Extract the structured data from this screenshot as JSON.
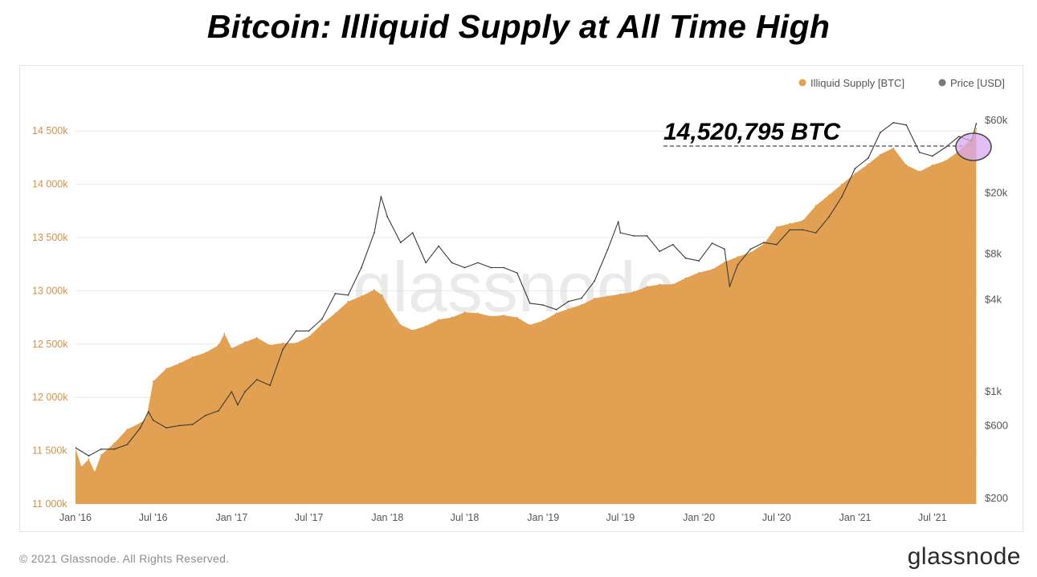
{
  "title": "Bitcoin: Illiquid Supply at All Time High",
  "footer": {
    "copyright": "© 2021 Glassnode. All Rights Reserved.",
    "logo": "glassnode"
  },
  "watermark": "glassnode",
  "colors": {
    "supply": "#e2a052",
    "price": "#7a7a7a",
    "left_axis_text": "#d3914a",
    "right_axis_text": "#555555",
    "highlight": "#d9a8f0"
  },
  "chart_data": {
    "type": "area",
    "legend": [
      {
        "name": "Illiquid Supply [BTC]",
        "color": "#e2a052"
      },
      {
        "name": "Price [USD]",
        "color": "#7a7a7a"
      }
    ],
    "legend_position": "top-right",
    "annotation": "14,520,795 BTC",
    "x_ticks": [
      "Jan '16",
      "Jul '16",
      "Jan '17",
      "Jul '17",
      "Jan '18",
      "Jul '18",
      "Jan '19",
      "Jul '19",
      "Jan '20",
      "Jul '20",
      "Jan '21",
      "Jul '21"
    ],
    "y_left": {
      "label": "",
      "ticks": [
        "11 000k",
        "11 500k",
        "12 000k",
        "12 500k",
        "13 000k",
        "13 500k",
        "14 000k",
        "14 500k"
      ],
      "range": [
        11000000,
        14750000
      ]
    },
    "y_right": {
      "label": "",
      "scale": "log",
      "ticks": [
        "$200",
        "$600",
        "$1k",
        "$4k",
        "$8k",
        "$20k",
        "$60k"
      ],
      "tick_values": [
        200,
        600,
        1000,
        4000,
        8000,
        20000,
        60000
      ],
      "range": [
        200,
        60000
      ]
    },
    "x_range": [
      "2016-01-01",
      "2021-10-15"
    ],
    "series": [
      {
        "name": "Illiquid Supply [BTC]",
        "dates": [
          "2016-01-01",
          "2016-01-15",
          "2016-02-01",
          "2016-02-15",
          "2016-03-01",
          "2016-04-01",
          "2016-05-01",
          "2016-06-01",
          "2016-06-15",
          "2016-07-01",
          "2016-08-01",
          "2016-09-01",
          "2016-10-01",
          "2016-11-01",
          "2016-12-01",
          "2016-12-15",
          "2017-01-01",
          "2017-02-01",
          "2017-03-01",
          "2017-04-01",
          "2017-05-01",
          "2017-06-01",
          "2017-07-01",
          "2017-08-01",
          "2017-09-01",
          "2017-10-01",
          "2017-11-01",
          "2017-12-01",
          "2017-12-20",
          "2018-01-01",
          "2018-02-01",
          "2018-03-01",
          "2018-04-01",
          "2018-05-01",
          "2018-06-01",
          "2018-07-01",
          "2018-08-01",
          "2018-09-01",
          "2018-10-01",
          "2018-11-01",
          "2018-12-01",
          "2019-01-01",
          "2019-02-01",
          "2019-03-01",
          "2019-04-01",
          "2019-05-01",
          "2019-06-01",
          "2019-07-01",
          "2019-08-01",
          "2019-09-01",
          "2019-10-01",
          "2019-11-01",
          "2019-12-01",
          "2020-01-01",
          "2020-02-01",
          "2020-03-01",
          "2020-04-01",
          "2020-05-01",
          "2020-06-01",
          "2020-07-01",
          "2020-08-01",
          "2020-09-01",
          "2020-10-01",
          "2020-11-01",
          "2020-12-01",
          "2021-01-01",
          "2021-02-01",
          "2021-03-01",
          "2021-04-01",
          "2021-05-01",
          "2021-06-01",
          "2021-07-01",
          "2021-08-01",
          "2021-09-01",
          "2021-10-01",
          "2021-10-12"
        ],
        "values": [
          11520000,
          11350000,
          11420000,
          11300000,
          11460000,
          11570000,
          11700000,
          11760000,
          11800000,
          12150000,
          12270000,
          12320000,
          12380000,
          12420000,
          12490000,
          12600000,
          12460000,
          12520000,
          12560000,
          12490000,
          12510000,
          12510000,
          12570000,
          12690000,
          12790000,
          12900000,
          12950000,
          13010000,
          12960000,
          12870000,
          12680000,
          12630000,
          12670000,
          12730000,
          12750000,
          12800000,
          12790000,
          12760000,
          12770000,
          12750000,
          12680000,
          12720000,
          12790000,
          12830000,
          12870000,
          12930000,
          12950000,
          12970000,
          12990000,
          13040000,
          13060000,
          13060000,
          13120000,
          13170000,
          13200000,
          13270000,
          13320000,
          13360000,
          13440000,
          13600000,
          13630000,
          13660000,
          13800000,
          13900000,
          14000000,
          14100000,
          14190000,
          14280000,
          14340000,
          14180000,
          14120000,
          14180000,
          14220000,
          14310000,
          14430000,
          14520795
        ]
      },
      {
        "name": "Price [USD]",
        "dates": [
          "2016-01-01",
          "2016-02-01",
          "2016-03-01",
          "2016-04-01",
          "2016-05-01",
          "2016-06-01",
          "2016-06-20",
          "2016-07-01",
          "2016-08-01",
          "2016-09-01",
          "2016-10-01",
          "2016-11-01",
          "2016-12-01",
          "2017-01-01",
          "2017-01-15",
          "2017-02-01",
          "2017-03-01",
          "2017-04-01",
          "2017-05-01",
          "2017-06-01",
          "2017-07-01",
          "2017-08-01",
          "2017-09-01",
          "2017-10-01",
          "2017-11-01",
          "2017-12-01",
          "2017-12-17",
          "2018-01-01",
          "2018-02-01",
          "2018-03-01",
          "2018-04-01",
          "2018-05-01",
          "2018-06-01",
          "2018-07-01",
          "2018-08-01",
          "2018-09-01",
          "2018-10-01",
          "2018-11-01",
          "2018-12-01",
          "2019-01-01",
          "2019-02-01",
          "2019-03-01",
          "2019-04-01",
          "2019-05-01",
          "2019-06-01",
          "2019-06-26",
          "2019-07-01",
          "2019-08-01",
          "2019-09-01",
          "2019-10-01",
          "2019-11-01",
          "2019-12-01",
          "2020-01-01",
          "2020-02-01",
          "2020-03-01",
          "2020-03-13",
          "2020-04-01",
          "2020-05-01",
          "2020-06-01",
          "2020-07-01",
          "2020-08-01",
          "2020-09-01",
          "2020-10-01",
          "2020-11-01",
          "2020-12-01",
          "2021-01-01",
          "2021-02-01",
          "2021-03-01",
          "2021-04-01",
          "2021-05-01",
          "2021-06-01",
          "2021-07-01",
          "2021-08-01",
          "2021-09-01",
          "2021-10-01",
          "2021-10-12"
        ],
        "values": [
          430,
          380,
          420,
          420,
          450,
          580,
          740,
          650,
          580,
          600,
          610,
          700,
          750,
          1000,
          820,
          1000,
          1200,
          1100,
          1900,
          2500,
          2500,
          3000,
          4400,
          4300,
          6500,
          11000,
          19000,
          14000,
          9500,
          11000,
          7000,
          9000,
          7000,
          6500,
          7000,
          6500,
          6500,
          6000,
          3800,
          3700,
          3450,
          3900,
          4100,
          5300,
          8500,
          13000,
          11000,
          10500,
          10500,
          8300,
          9200,
          7500,
          7200,
          9400,
          8600,
          4900,
          6800,
          8600,
          9500,
          9200,
          11500,
          11500,
          11000,
          14000,
          19000,
          29000,
          34000,
          50000,
          58000,
          56000,
          37000,
          35000,
          40000,
          47000,
          44000,
          57000
        ]
      }
    ]
  }
}
